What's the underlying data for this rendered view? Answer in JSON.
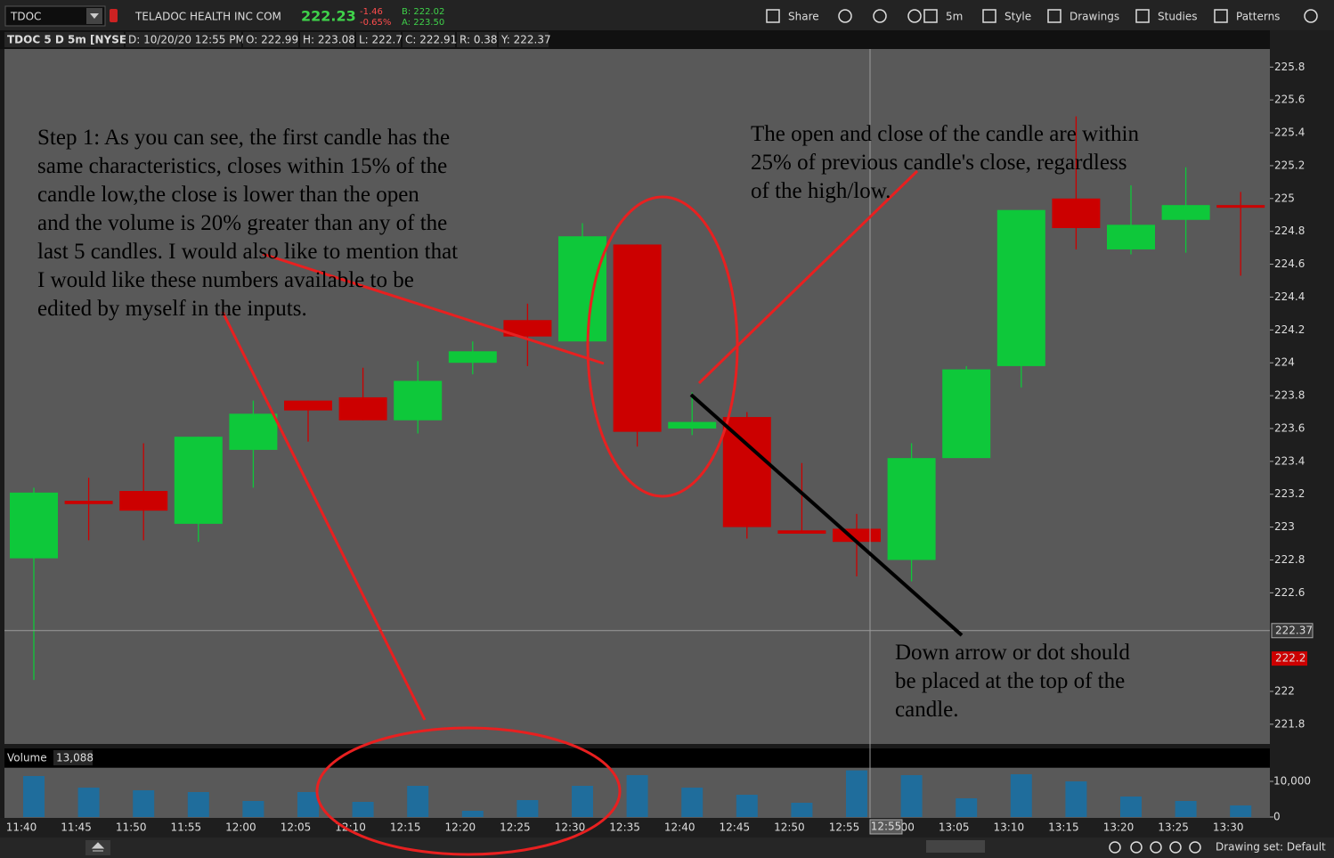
{
  "toolbar": {
    "symbol": "TDOC",
    "company": "TELADOC HEALTH INC COM",
    "last": "222.23",
    "change": "-1.46",
    "change_pct": "-0.65%",
    "bid": "B: 222.02",
    "ask": "A: 223.50",
    "buttons": [
      "Share",
      "5m",
      "Style",
      "Drawings",
      "Studies",
      "Patterns"
    ]
  },
  "header": {
    "fields": [
      "TDOC 5 D 5m [NYSE]",
      "D: 10/20/20 12:55 PM",
      "O: 222.99",
      "H: 223.08",
      "L: 222.7",
      "C: 222.91",
      "R: 0.38",
      "Y: 222.37"
    ]
  },
  "chart_data": [
    {
      "type": "candlestick",
      "categories": [
        "11:40",
        "11:45",
        "11:50",
        "11:55",
        "12:00",
        "12:05",
        "12:10",
        "12:15",
        "12:20",
        "12:25",
        "12:30",
        "12:35",
        "12:40",
        "12:45",
        "12:50",
        "12:55",
        "13:00",
        "13:05",
        "13:10",
        "13:15",
        "13:20",
        "13:25",
        "13:30"
      ],
      "open": [
        222.81,
        223.16,
        223.22,
        223.02,
        223.47,
        223.77,
        223.79,
        223.65,
        224.0,
        224.26,
        224.13,
        224.72,
        223.6,
        223.67,
        222.98,
        222.99,
        222.8,
        223.42,
        223.98,
        225.0,
        224.69,
        224.87,
        224.96
      ],
      "high": [
        223.24,
        223.3,
        223.51,
        223.55,
        223.77,
        223.77,
        223.97,
        224.01,
        224.13,
        224.36,
        224.85,
        224.72,
        223.82,
        223.7,
        223.39,
        223.08,
        223.51,
        223.98,
        224.93,
        225.5,
        225.08,
        225.19,
        225.04
      ],
      "low": [
        222.07,
        222.92,
        222.92,
        222.91,
        223.24,
        223.52,
        223.65,
        223.57,
        223.93,
        223.98,
        224.13,
        223.49,
        223.56,
        222.93,
        222.96,
        222.7,
        222.67,
        223.42,
        223.85,
        224.69,
        224.66,
        224.67,
        224.53
      ],
      "close": [
        223.21,
        223.14,
        223.1,
        223.55,
        223.69,
        223.71,
        223.65,
        223.89,
        224.07,
        224.16,
        224.77,
        223.58,
        223.64,
        223.0,
        222.96,
        222.91,
        223.42,
        223.96,
        224.93,
        224.82,
        224.84,
        224.96,
        224.95
      ],
      "up_color": "#0ec83a",
      "down_color": "#cc0000",
      "ylim": [
        221.68,
        225.91
      ],
      "yticks": [
        225.8,
        225.6,
        225.4,
        225.2,
        225,
        224.8,
        224.6,
        224.4,
        224.2,
        224,
        223.8,
        223.6,
        223.4,
        223.2,
        223,
        222.8,
        222.6,
        222,
        221.8
      ],
      "cursor_price": 222.37,
      "price_marker": 222.2,
      "cursor_time": "12:55"
    },
    {
      "type": "bar",
      "title": "Volume",
      "cursor_value": "13,088",
      "color": "#1f6d9c",
      "values": [
        11500,
        8250,
        7500,
        7000,
        4500,
        7000,
        4250,
        8750,
        1750,
        4750,
        8750,
        11750,
        8250,
        6250,
        4000,
        13088,
        11750,
        5250,
        12000,
        10000,
        5750,
        4500,
        3250
      ],
      "ylim": [
        0,
        13750
      ],
      "yticks": [
        0,
        {
          "value": 10000,
          "label": "10,000"
        }
      ]
    }
  ],
  "annotations": [
    {
      "lines": [
        "Step 1: As you can see, the first candle has the",
        "same characteristics, closes within 15% of the",
        "candle low,the close is lower than the open",
        "and the volume is 20% greater than any of the",
        "last 5 candles. I would also like to mention that",
        "I would like these numbers available to be",
        "edited by myself in the inputs."
      ]
    },
    {
      "lines": [
        "The open and close of the candle are within",
        "25% of previous candle's close, regardless",
        "of the high/low."
      ]
    },
    {
      "lines": [
        "Down arrow or dot should",
        "be placed at the top of the",
        "candle."
      ]
    }
  ],
  "footer": {
    "drawing_set": "Drawing set: Default"
  }
}
